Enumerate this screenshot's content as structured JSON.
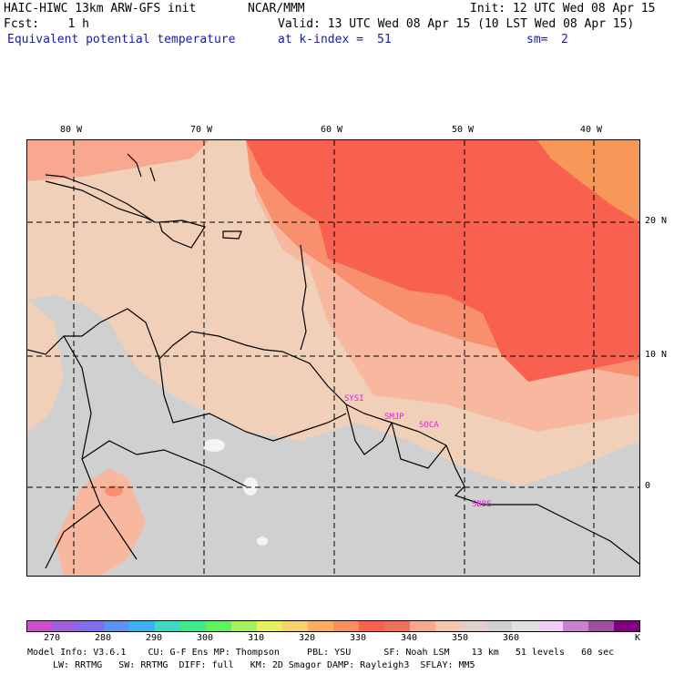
{
  "header": {
    "left1": "HAIC-HIWC 13km ARW-GFS init",
    "center1": "NCAR/MMM",
    "right1": "Init: 12 UTC Wed 08 Apr 15",
    "left2": "Fcst:    1 h",
    "center2": "Valid: 13 UTC Wed 08 Apr 15 (10 LST Wed 08 Apr 15)",
    "field": "Equivalent potential temperature",
    "kindex_label": "at k-index =",
    "kindex_value": "51",
    "sm_label": "sm=",
    "sm_value": "2"
  },
  "axes": {
    "lon_labels": [
      "80 W",
      "70 W",
      "60 W",
      "50 W",
      "40 W"
    ],
    "lat_labels": [
      "20 N",
      "10 N",
      "0"
    ]
  },
  "map_labels": [
    "SYSI",
    "SMJP",
    "SOCA",
    "SBBE"
  ],
  "colorbar": {
    "colors": [
      "#c850c8",
      "#a060d8",
      "#8070e8",
      "#6090f0",
      "#40b0f0",
      "#40d8c0",
      "#40e890",
      "#60f060",
      "#a8f060",
      "#e8f060",
      "#f8d070",
      "#f8b060",
      "#f89060",
      "#f86050",
      "#f07060",
      "#f8a890",
      "#f0c8b0",
      "#e0d0c8",
      "#d0d0d0",
      "#e0e0e0",
      "#f0d0f0",
      "#c880d0",
      "#a050a0",
      "#800080"
    ],
    "labels": [
      "270",
      "280",
      "290",
      "300",
      "310",
      "320",
      "330",
      "340",
      "350",
      "360",
      "K"
    ],
    "map_colors": {
      "grey": "#d0d0d0",
      "tan": "#f0d0b8",
      "peach": "#f8b8a0",
      "salmon": "#f89070",
      "red": "#f86050",
      "white": "#f4f4f4",
      "orange": "#f89858"
    }
  },
  "footer": {
    "line1": "Model Info: V3.6.1    CU: G-F Ens MP: Thompson     PBL: YSU      SF: Noah LSM    13 km   51 levels   60 sec",
    "line2": "LW: RRTMG   SW: RRTMG  DIFF: full   KM: 2D Smagor DAMP: Rayleigh3  SFLAY: MM5"
  }
}
